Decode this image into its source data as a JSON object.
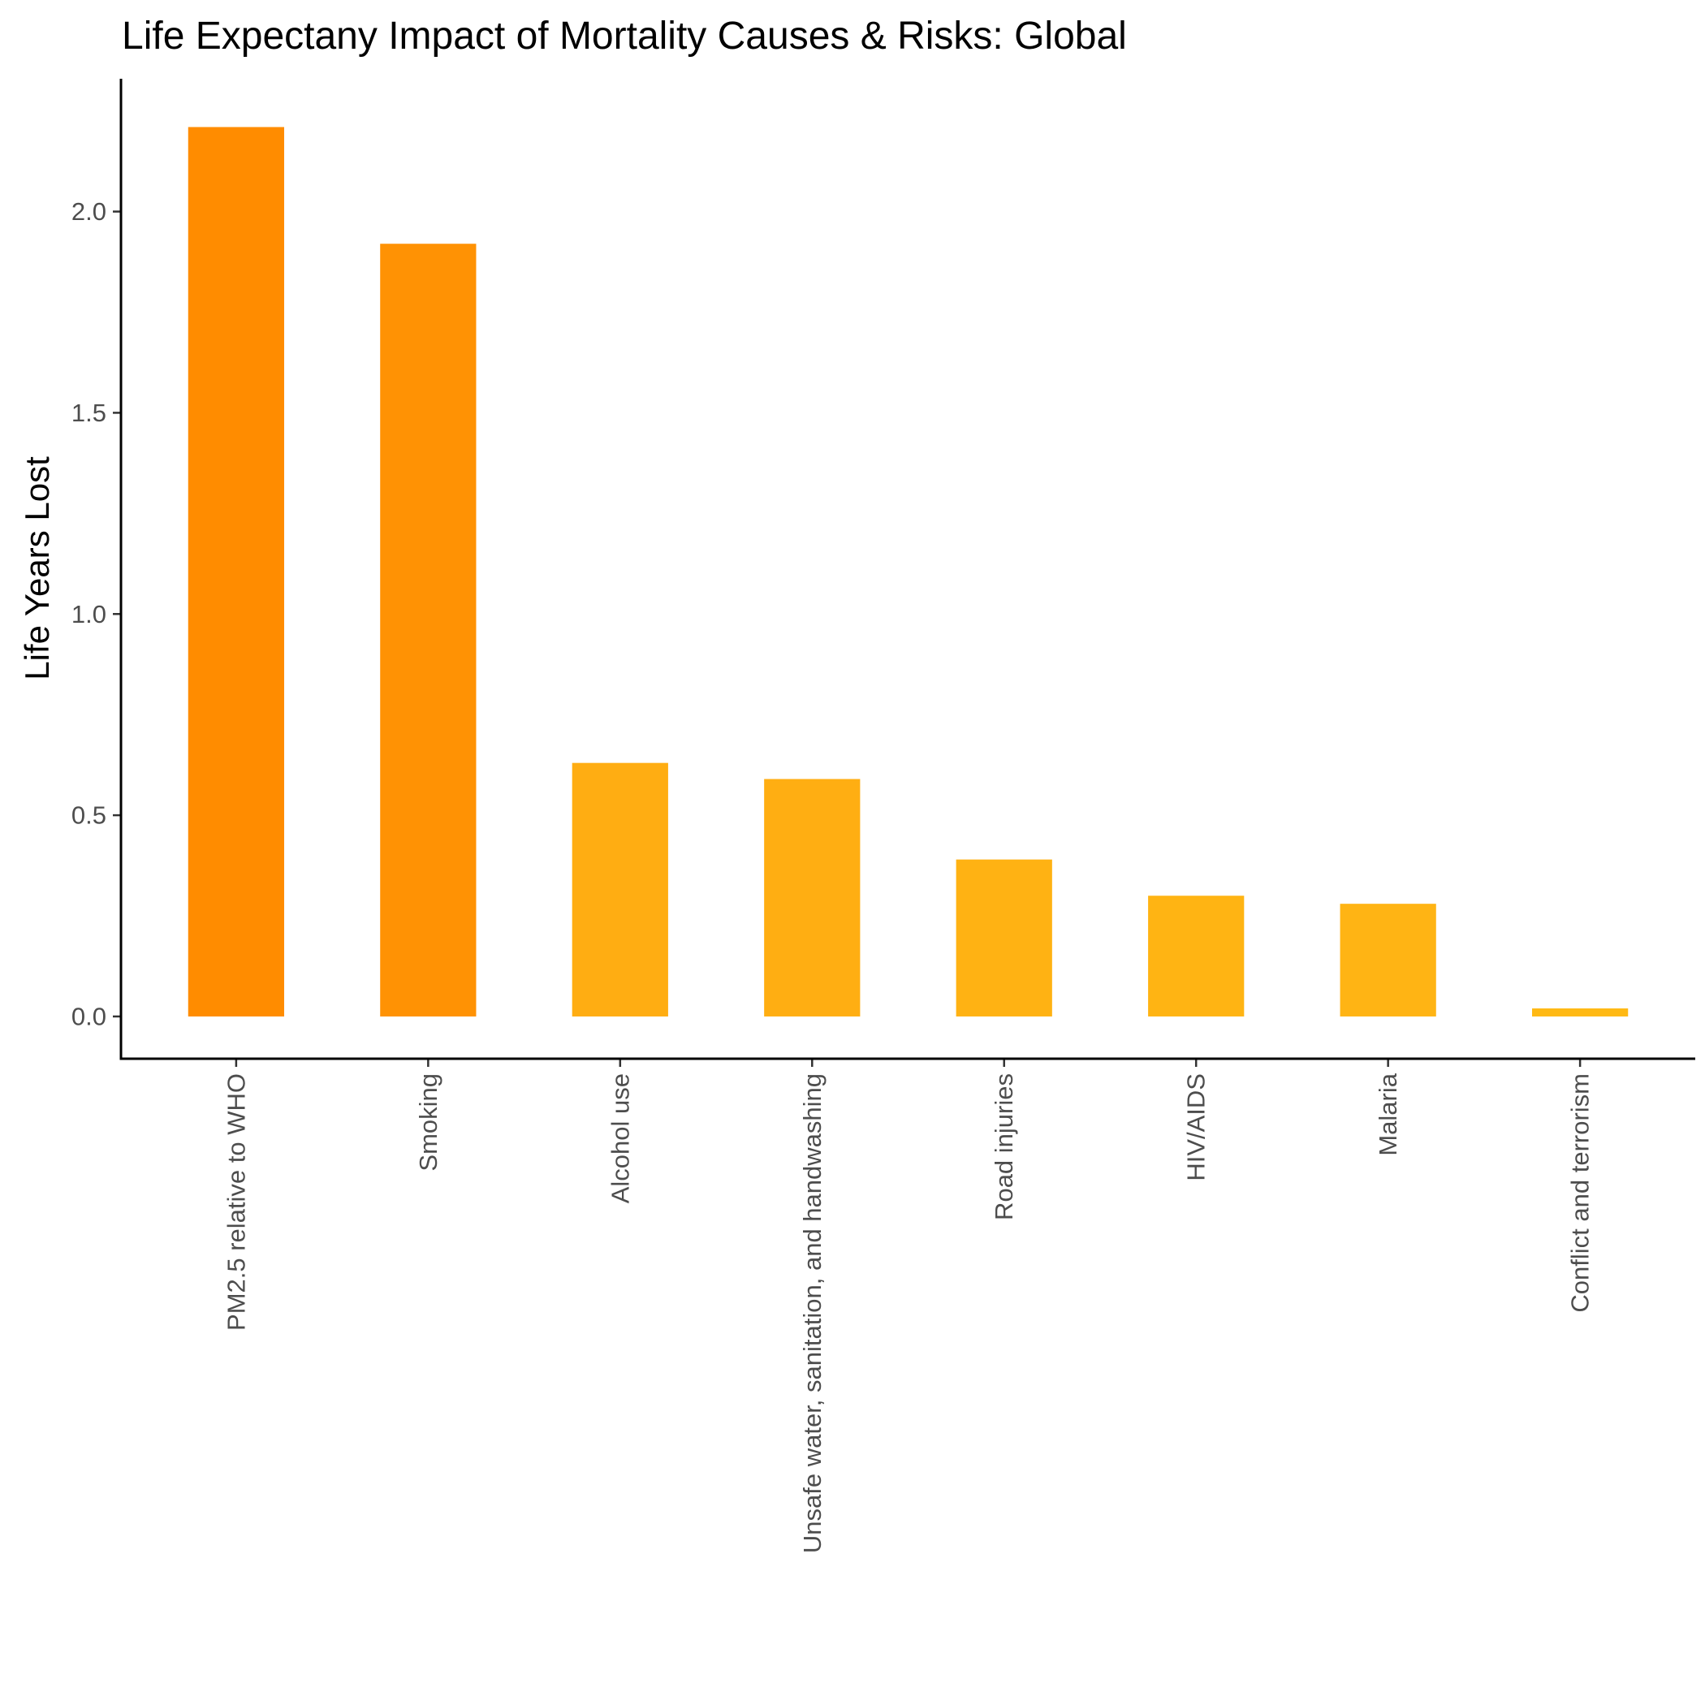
{
  "chart_data": {
    "type": "bar",
    "title": "Life Expectany Impact of Mortality Causes & Risks: Global",
    "xlabel": "",
    "ylabel": "Life Years Lost",
    "categories": [
      "PM2.5 relative to WHO",
      "Smoking",
      "Alcohol use",
      "Unsafe water, sanitation, and handwashing",
      "Road injuries",
      "HIV/AIDS",
      "Malaria",
      "Conflict and terrorism"
    ],
    "values": [
      2.21,
      1.92,
      0.63,
      0.59,
      0.39,
      0.3,
      0.28,
      0.02
    ],
    "colors": [
      "#ff8c00",
      "#ff9204",
      "#ffad12",
      "#ffae12",
      "#ffb213",
      "#ffb413",
      "#ffb414",
      "#ffb914"
    ],
    "ylim": [
      -0.105,
      2.33
    ],
    "yticks": [
      0.0,
      0.5,
      1.0,
      1.5,
      2.0
    ],
    "ytick_labels": [
      "0.0",
      "0.5",
      "1.0",
      "1.5",
      "2.0"
    ],
    "grid": false,
    "legend": "none"
  }
}
